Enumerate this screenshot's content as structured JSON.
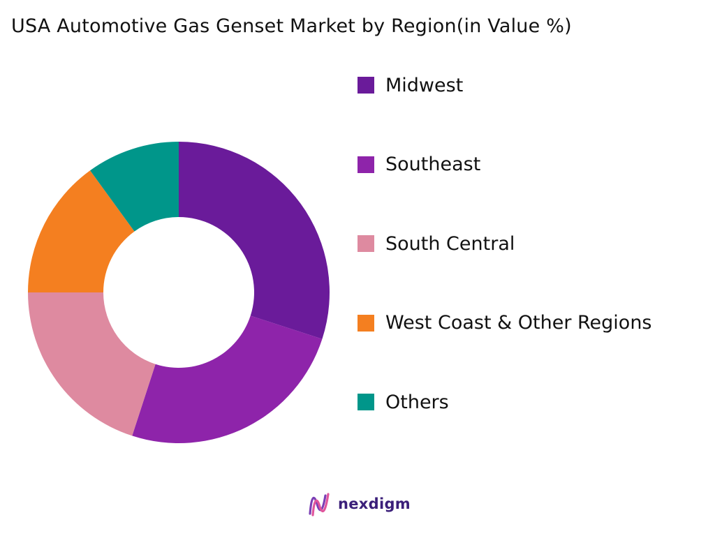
{
  "title": "USA Automotive Gas Genset Market by Region(in Value %)",
  "chart_data": {
    "type": "pie",
    "variant": "donut",
    "title": "USA Automotive Gas Genset Market by Region(in Value %)",
    "categories": [
      "Midwest",
      "Southeast",
      "South Central",
      "West Coast & Other Regions",
      "Others"
    ],
    "values": [
      30,
      25,
      20,
      15,
      10
    ],
    "colors": [
      "#6a1b9a",
      "#8e24aa",
      "#de8aa0",
      "#f47f20",
      "#00968a"
    ],
    "legend_position": "right",
    "start_angle": "12 o'clock",
    "direction": "clockwise"
  },
  "logo": {
    "text": "nexdigm",
    "mark_icon": "nexdigm-wave-icon",
    "color": "#3b1f7a"
  }
}
